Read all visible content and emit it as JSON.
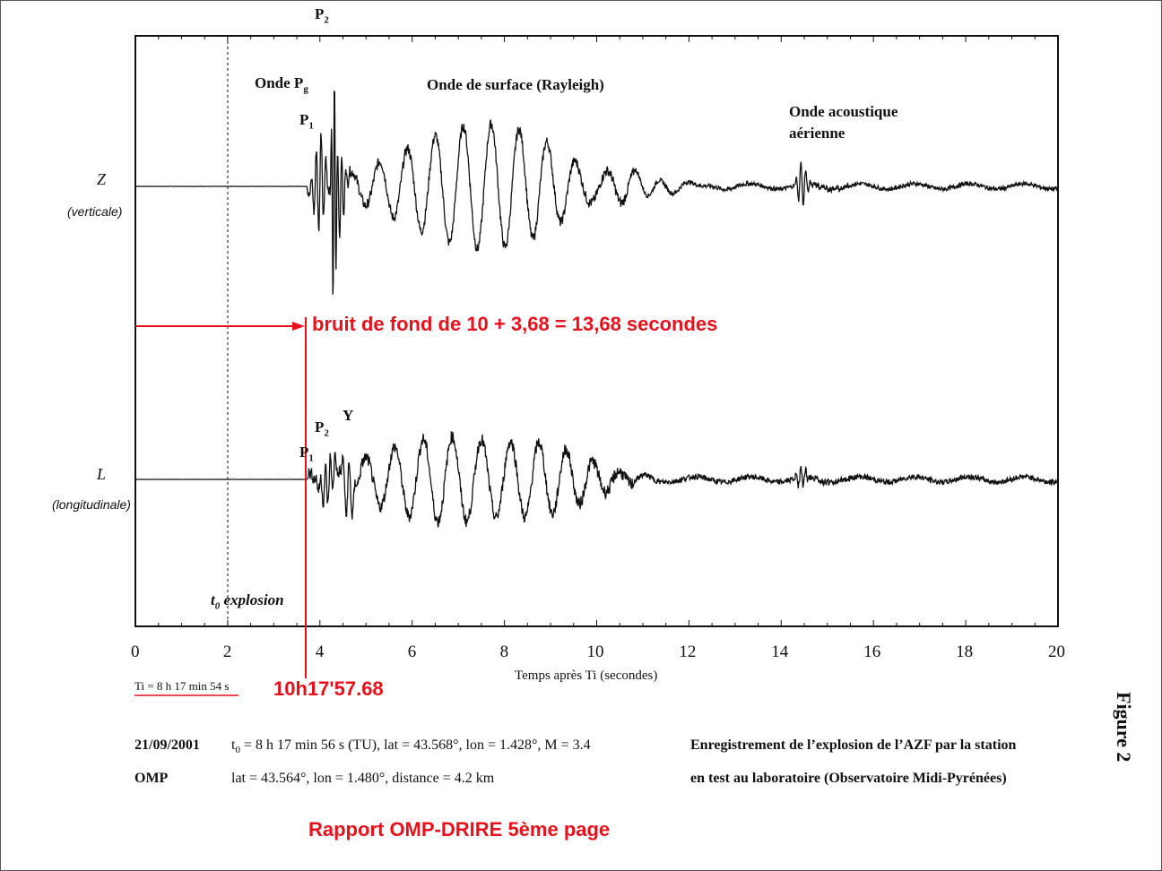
{
  "chart_data": {
    "type": "line",
    "x_range": [
      0,
      20
    ],
    "x_ticks": [
      "0",
      "2",
      "4",
      "6",
      "8",
      "10",
      "12",
      "14",
      "16",
      "18",
      "20"
    ],
    "xlabel": "Temps après Ti (secondes)",
    "grid": false,
    "channels": [
      {
        "name": "Z",
        "subtitle": "(verticale)"
      },
      {
        "name": "L",
        "subtitle": "(longitudinale)"
      }
    ],
    "annotations": {
      "p2_top": "P",
      "p2_top_sub": "2",
      "onde_pg": "Onde P",
      "onde_pg_sub": "g",
      "p1_z": "P",
      "p1_z_sub": "1",
      "rayleigh": "Onde de surface (Rayleigh)",
      "acoustique_1": "Onde acoustique",
      "acoustique_2": "aérienne",
      "p1_l": "P",
      "p1_l_sub": "1",
      "p2_l": "P",
      "p2_l_sub": "2",
      "y": "Y",
      "t0": "t",
      "t0_sub": "0",
      "explosion": "explosion"
    },
    "t0_line_x": 2,
    "red_marker_x": 3.68
  },
  "overlay": {
    "bruit": "bruit de fond de 10 + 3,68 = 13,68 secondes",
    "time": "10h17'57.68",
    "rapport": "Rapport OMP-DRIRE  5ème page",
    "red_color": "#e8101a"
  },
  "caption": {
    "ti": "Ti = 8 h 17 min 54 s",
    "date": "21/09/2001",
    "t0_line_prefix": "t",
    "t0_line_sub": "0",
    "t0_line_rest": " = 8 h 17 min 56 s (TU), lat = 43.568°, lon = 1.428°, M = 3.4",
    "omp": "OMP",
    "omp_line": "lat = 43.564°, lon = 1.480°, distance = 4.2 km",
    "title_1": "Enregistrement de l’explosion de l’AZF par la station",
    "title_2": "en test au laboratoire (Observatoire Midi-Pyrénées)",
    "figure": "Figure 2"
  }
}
